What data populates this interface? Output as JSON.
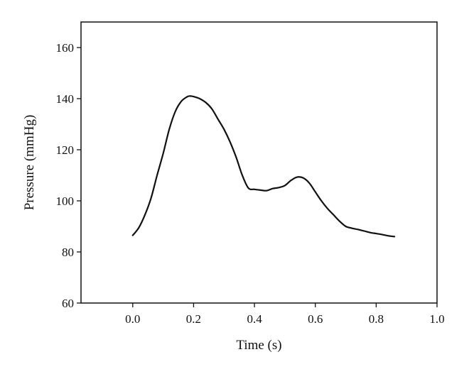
{
  "chart_data": {
    "type": "line",
    "title": "",
    "xlabel": "Time (s)",
    "ylabel": "Pressure (mmHg)",
    "xlim": [
      -0.17,
      1.0
    ],
    "ylim": [
      60,
      170
    ],
    "x_ticks": [
      0.0,
      0.2,
      0.4,
      0.6,
      0.8,
      1.0
    ],
    "x_tick_labels": [
      "0.0",
      "0.2",
      "0.4",
      "0.6",
      "0.8",
      "1.0"
    ],
    "y_ticks": [
      60,
      80,
      100,
      120,
      140,
      160
    ],
    "y_tick_labels": [
      "60",
      "80",
      "100",
      "120",
      "140",
      "160"
    ],
    "grid": false,
    "legend": "none",
    "line_color": "#111111",
    "series": [
      {
        "x": [
          0.0,
          0.02,
          0.04,
          0.06,
          0.08,
          0.1,
          0.12,
          0.14,
          0.16,
          0.18,
          0.19,
          0.2,
          0.22,
          0.24,
          0.26,
          0.28,
          0.3,
          0.32,
          0.34,
          0.36,
          0.38,
          0.4,
          0.42,
          0.44,
          0.46,
          0.48,
          0.5,
          0.52,
          0.54,
          0.56,
          0.58,
          0.6,
          0.62,
          0.64,
          0.66,
          0.68,
          0.7,
          0.72,
          0.74,
          0.76,
          0.78,
          0.8,
          0.82,
          0.84,
          0.86
        ],
        "y": [
          86.5,
          89.5,
          94.5,
          101,
          110,
          118.5,
          128,
          135,
          139,
          140.8,
          141,
          140.8,
          140,
          138.5,
          136,
          132,
          128,
          123,
          117,
          110,
          105,
          104.5,
          104.2,
          104,
          104.8,
          105.2,
          106,
          108,
          109.3,
          109,
          107,
          103.5,
          100,
          97,
          94.5,
          92,
          90,
          89.3,
          88.8,
          88.2,
          87.6,
          87.2,
          86.8,
          86.3,
          86
        ]
      }
    ]
  }
}
